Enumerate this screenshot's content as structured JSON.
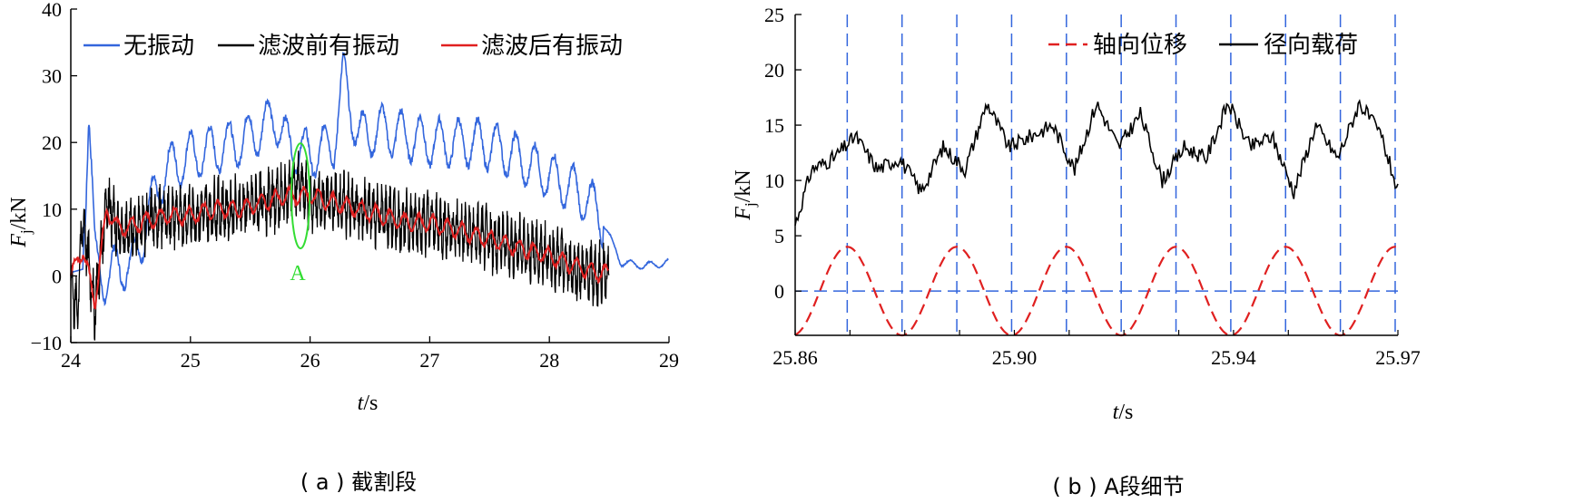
{
  "chart_data": [
    {
      "panel": "a",
      "type": "line",
      "caption": "( a ) 截割段",
      "ylabel_main": "F",
      "ylabel_sub": "j",
      "ylabel_unit": "/kN",
      "xlabel_main": "t",
      "xlabel_unit": "/s",
      "xlim": [
        24,
        29
      ],
      "ylim": [
        -10,
        40
      ],
      "xticks": [
        "24",
        "25",
        "26",
        "27",
        "28",
        "29"
      ],
      "yticks": [
        "−10",
        "0",
        "10",
        "20",
        "30",
        "40"
      ],
      "legend_position": "top",
      "annotation": {
        "text": "A",
        "x": 25.92,
        "y": 12,
        "color": "#33dd33"
      },
      "series": [
        {
          "name": "无振动",
          "color": "#3366dd",
          "x": [
            24.0,
            24.1,
            24.15,
            24.2,
            24.3,
            24.4,
            24.5,
            24.6,
            24.7,
            24.8,
            25.0,
            25.2,
            25.4,
            25.6,
            25.7,
            25.8,
            26.0,
            26.2,
            26.28,
            26.4,
            26.6,
            26.8,
            27.0,
            27.2,
            27.4,
            27.6,
            27.8,
            28.0,
            28.2,
            28.4,
            28.5,
            28.6,
            28.8,
            29.0
          ],
          "y": [
            0.5,
            1.0,
            25.0,
            3.0,
            -1.0,
            2.0,
            1.0,
            6.0,
            12.0,
            16.0,
            18.0,
            19.0,
            20.0,
            22.0,
            24.0,
            20.0,
            18.0,
            20.0,
            30.0,
            21.0,
            22.0,
            21.0,
            20.0,
            20.0,
            20.0,
            19.0,
            17.0,
            15.0,
            13.0,
            10.0,
            6.0,
            2.0,
            1.5,
            2.0
          ]
        },
        {
          "name": "滤波前有振动",
          "color": "#000000",
          "x": [
            24.0,
            24.05,
            24.1,
            24.2,
            24.3,
            24.4,
            24.6,
            24.8,
            25.0,
            25.2,
            25.4,
            25.6,
            25.8,
            25.9,
            26.0,
            26.2,
            26.4,
            26.6,
            26.8,
            27.0,
            27.2,
            27.4,
            27.6,
            27.8,
            28.0,
            28.2,
            28.4,
            28.5
          ],
          "y": [
            0.0,
            -6.0,
            9.0,
            -5.0,
            12.0,
            6.0,
            8.0,
            9.0,
            9.0,
            10.0,
            10.0,
            11.0,
            12.0,
            14.0,
            11.0,
            11.0,
            10.0,
            9.0,
            8.0,
            8.0,
            7.0,
            6.0,
            5.0,
            4.0,
            3.0,
            1.0,
            0.0,
            0.5
          ]
        },
        {
          "name": "滤波后有振动",
          "color": "#e02020",
          "x": [
            24.0,
            24.1,
            24.2,
            24.3,
            24.4,
            24.6,
            24.8,
            25.0,
            25.2,
            25.4,
            25.6,
            25.8,
            26.0,
            26.2,
            26.4,
            26.6,
            26.8,
            27.0,
            27.2,
            27.4,
            27.6,
            27.8,
            28.0,
            28.2,
            28.4,
            28.5
          ],
          "y": [
            0.0,
            4.0,
            -4.0,
            10.0,
            7.0,
            8.0,
            9.0,
            9.0,
            10.0,
            10.0,
            11.0,
            12.0,
            12.0,
            11.0,
            10.0,
            9.0,
            8.0,
            8.0,
            7.0,
            6.0,
            5.0,
            4.0,
            3.0,
            1.5,
            0.5,
            0.5
          ]
        }
      ]
    },
    {
      "panel": "b",
      "type": "line",
      "caption": "( b ) A段细节",
      "ylabel_main": "F",
      "ylabel_sub": "j",
      "ylabel_unit": "/kN",
      "xlabel_main": "t",
      "xlabel_unit": "/s",
      "xlim": [
        25.86,
        25.97
      ],
      "ylim": [
        -4,
        25
      ],
      "xticks": [
        "25.86",
        "25.90",
        "25.94",
        "25.97"
      ],
      "yticks": [
        "0",
        "5",
        "10",
        "15",
        "20",
        "25"
      ],
      "legend_position": "top-right",
      "guides": {
        "color": "#3366dd",
        "vertical_x": [
          25.8695,
          25.8895,
          25.9095,
          25.9295,
          25.9495,
          25.9695,
          25.8795,
          25.8995,
          25.9195,
          25.9395,
          25.9595
        ],
        "horizontal_y": 0
      },
      "series": [
        {
          "name": "轴向位移",
          "color": "#e02020",
          "dash": true,
          "function": "sine",
          "amplitude": 4,
          "period_s": 0.02,
          "peak_x": 25.8695
        },
        {
          "name": "径向载荷",
          "color": "#000000",
          "x": [
            25.86,
            25.863,
            25.867,
            25.871,
            25.875,
            25.879,
            25.883,
            25.887,
            25.891,
            25.895,
            25.899,
            25.903,
            25.907,
            25.911,
            25.915,
            25.919,
            25.923,
            25.927,
            25.931,
            25.935,
            25.939,
            25.943,
            25.947,
            25.951,
            25.955,
            25.959,
            25.963,
            25.967,
            25.97
          ],
          "y": [
            6.0,
            11.0,
            12.0,
            14.0,
            11.0,
            12.0,
            9.0,
            13.0,
            11.0,
            17.0,
            13.0,
            14.0,
            15.0,
            11.0,
            17.0,
            13.0,
            16.0,
            10.0,
            13.0,
            12.0,
            17.0,
            13.0,
            14.0,
            9.0,
            15.0,
            12.0,
            17.0,
            14.0,
            9.0
          ]
        }
      ]
    }
  ]
}
